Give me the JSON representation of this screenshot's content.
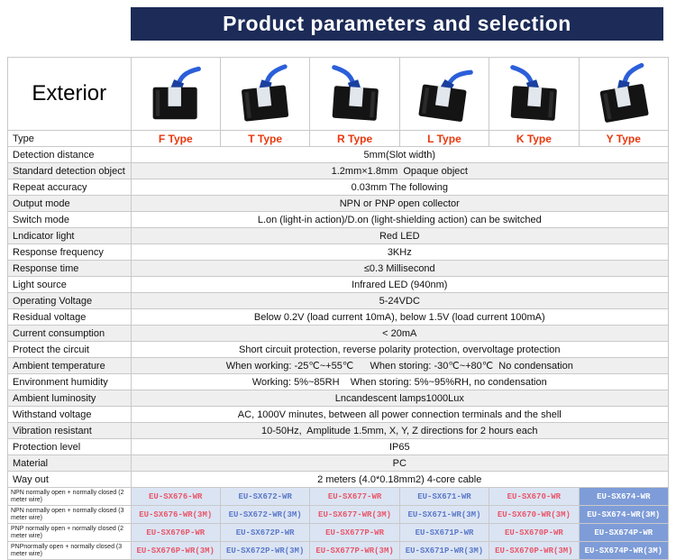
{
  "colors": {
    "header-bg": "#1c2b57",
    "header-text": "#ffffff",
    "type-red": "#e8380d",
    "model-red": "#e8566a",
    "model-blue": "#5b79c9",
    "model-cell-bg": "#dbe4f3",
    "model-highlight-bg": "#7e9cd8",
    "model-highlight-text": "#ffffff",
    "row-alt-bg": "#efefef",
    "border": "#c9c9c9",
    "cable-blue": "#2b5fd9"
  },
  "header": {
    "title": "Product parameters and selection"
  },
  "table": {
    "exterior_label": "Exterior",
    "type_row_label": "Type",
    "types": [
      "F Type",
      "T Type",
      "R Type",
      "L Type",
      "K Type",
      "Y Type"
    ],
    "exterior_images": [
      "f-type-sensor-photo",
      "t-type-sensor-photo",
      "r-type-sensor-photo",
      "l-type-sensor-photo",
      "k-type-sensor-photo",
      "y-type-sensor-photo"
    ],
    "params": [
      {
        "label": "Detection distance",
        "value": "5mm(Slot width)"
      },
      {
        "label": "Standard detection object",
        "value": "1.2mm×1.8mm  Opaque object"
      },
      {
        "label": "Repeat accuracy",
        "value": "0.03mm The following"
      },
      {
        "label": "Output mode",
        "value": "NPN or PNP open collector"
      },
      {
        "label": "Switch mode",
        "value": "L.on (light-in action)/D.on (light-shielding action) can be switched"
      },
      {
        "label": "Lndicator light",
        "value": "Red LED"
      },
      {
        "label": "Response frequency",
        "value": "3KHz"
      },
      {
        "label": "Response time",
        "value": "≤0.3 Millisecond"
      },
      {
        "label": "Light source",
        "value": "Infrared LED (940nm)"
      },
      {
        "label": "Operating Voltage",
        "value": "5-24VDC"
      },
      {
        "label": "Residual voltage",
        "value": "Below 0.2V (load current 10mA), below 1.5V (load current 100mA)"
      },
      {
        "label": "Current consumption",
        "value": "< 20mA"
      },
      {
        "label": "Protect the circuit",
        "value": "Short circuit protection, reverse polarity protection, overvoltage protection"
      },
      {
        "label": "Ambient temperature",
        "value": "When working: -25℃~+55℃      When storing: -30℃~+80℃  No condensation"
      },
      {
        "label": "Environment humidity",
        "value": "Working: 5%~85RH    When storing: 5%~95%RH, no condensation"
      },
      {
        "label": "Ambient luminosity",
        "value": "Lncandescent lamps1000Lux"
      },
      {
        "label": "Withstand voltage",
        "value": "AC, 1000V minutes, between all power connection terminals and the shell"
      },
      {
        "label": "Vibration resistant",
        "value": "10-50Hz,  Amplitude 1.5mm, X, Y, Z directions for 2 hours each"
      },
      {
        "label": "Protection level",
        "value": "IP65"
      },
      {
        "label": "Material",
        "value": "PC"
      },
      {
        "label": "Way out",
        "value": "2 meters (4.0*0.18mm2) 4-core cable"
      }
    ],
    "model_rows": [
      {
        "label": "NPN normally open + normally closed (2 meter wire)",
        "models": [
          "EU-SX676-WR",
          "EU-SX672-WR",
          "EU-SX677-WR",
          "EU-SX671-WR",
          "EU-SX670-WR",
          "EU-SX674-WR"
        ]
      },
      {
        "label": "NPN normally open + normally closed (3 meter wire)",
        "models": [
          "EU-SX676-WR(3M)",
          "EU-SX672-WR(3M)",
          "EU-SX677-WR(3M)",
          "EU-SX671-WR(3M)",
          "EU-SX670-WR(3M)",
          "EU-SX674-WR(3M)"
        ]
      },
      {
        "label": "PNP normally open + normally closed (2 meter wire)",
        "models": [
          "EU-SX676P-WR",
          "EU-SX672P-WR",
          "EU-SX677P-WR",
          "EU-SX671P-WR",
          "EU-SX670P-WR",
          "EU-SX674P-WR"
        ]
      },
      {
        "label": "PNPnormally open + normally closed (3 meter wire)",
        "models": [
          "EU-SX676P-WR(3M)",
          "EU-SX672P-WR(3M)",
          "EU-SX677P-WR(3M)",
          "EU-SX671P-WR(3M)",
          "EU-SX670P-WR(3M)",
          "EU-SX674P-WR(3M)"
        ]
      }
    ]
  }
}
